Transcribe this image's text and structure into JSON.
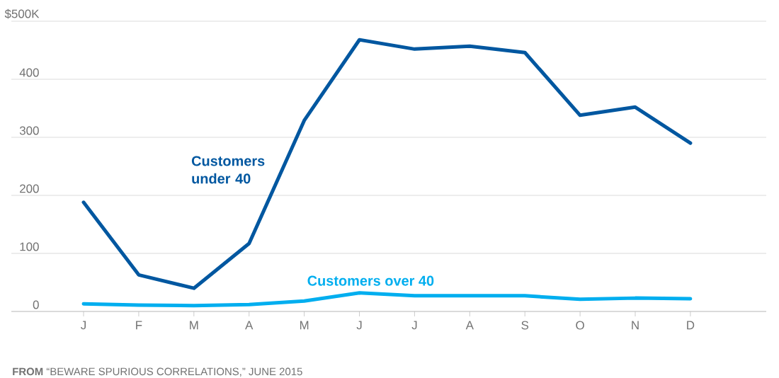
{
  "chart_data": {
    "type": "line",
    "categories": [
      "J",
      "F",
      "M",
      "A",
      "M",
      "J",
      "J",
      "A",
      "S",
      "O",
      "N",
      "D"
    ],
    "series": [
      {
        "name": "Customers under 40",
        "color": "#0057a0",
        "values": [
          188,
          63,
          40,
          117,
          329,
          468,
          452,
          457,
          446,
          338,
          352,
          290
        ]
      },
      {
        "name": "Customers over 40",
        "color": "#00aeef",
        "values": [
          13,
          11,
          10,
          12,
          18,
          32,
          27,
          27,
          27,
          21,
          23,
          22
        ]
      }
    ],
    "ylim": [
      0,
      500
    ],
    "yticks": [
      0,
      100,
      200,
      300,
      400,
      {
        "value": 500,
        "label": "$500K"
      }
    ],
    "grid": "y",
    "annotations": [
      "**FROM** “BEWARE SPURIOUS CORRELATIONS,” JUNE 2015"
    ]
  }
}
